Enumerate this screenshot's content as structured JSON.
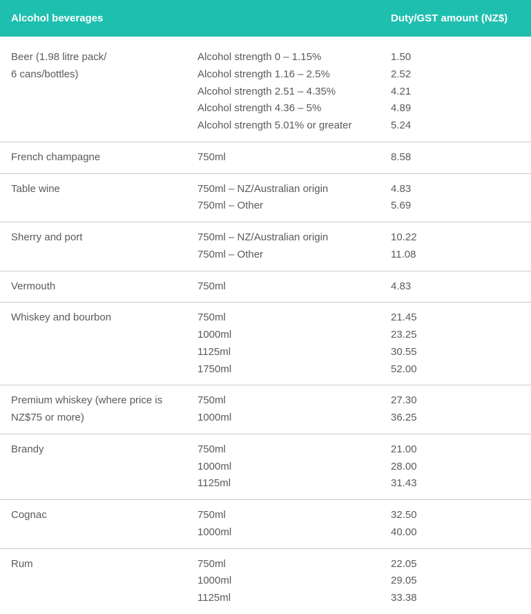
{
  "colors": {
    "header_bg": "#1fbfaf",
    "header_text": "#ffffff",
    "body_text": "#5a5a5a",
    "divider": "#c9c9c9"
  },
  "header": {
    "col1": "Alcohol beverages",
    "col2": "",
    "col3": "Duty/GST amount (NZ$)"
  },
  "rows": [
    {
      "product": [
        "Beer (1.98 litre pack/",
        "6 cans/bottles)"
      ],
      "detail": [
        "Alcohol strength 0 – 1.15%",
        "Alcohol strength 1.16 – 2.5%",
        "Alcohol strength 2.51 – 4.35%",
        "Alcohol strength 4.36 – 5%",
        "Alcohol strength 5.01% or greater"
      ],
      "amount": [
        "1.50",
        "2.52",
        "4.21",
        "4.89",
        "5.24"
      ]
    },
    {
      "product": [
        "French champagne"
      ],
      "detail": [
        "750ml"
      ],
      "amount": [
        "8.58"
      ]
    },
    {
      "product": [
        "Table wine"
      ],
      "detail": [
        "750ml – NZ/Australian origin",
        "750ml – Other"
      ],
      "amount": [
        "4.83",
        "5.69"
      ]
    },
    {
      "product": [
        "Sherry and port"
      ],
      "detail": [
        "750ml – NZ/Australian origin",
        "750ml – Other"
      ],
      "amount": [
        "10.22",
        "11.08"
      ]
    },
    {
      "product": [
        "Vermouth"
      ],
      "detail": [
        "750ml"
      ],
      "amount": [
        "4.83"
      ]
    },
    {
      "product": [
        "Whiskey and bourbon"
      ],
      "detail": [
        "750ml",
        "1000ml",
        "1125ml",
        "1750ml"
      ],
      "amount": [
        "21.45",
        "23.25",
        "30.55",
        "52.00"
      ]
    },
    {
      "product": [
        "Premium whiskey (where price is",
        "NZ$75 or more)"
      ],
      "detail": [
        "750ml",
        "1000ml"
      ],
      "amount": [
        "27.30",
        "36.25"
      ]
    },
    {
      "product": [
        "Brandy"
      ],
      "detail": [
        "750ml",
        "1000ml",
        "1125ml"
      ],
      "amount": [
        "21.00",
        "28.00",
        "31.43"
      ]
    },
    {
      "product": [
        "Cognac"
      ],
      "detail": [
        "750ml",
        "1000ml"
      ],
      "amount": [
        "32.50",
        "40.00"
      ]
    },
    {
      "product": [
        "Rum"
      ],
      "detail": [
        "750ml",
        "1000ml",
        "1125ml"
      ],
      "amount": [
        "22.05",
        "29.05",
        "33.38"
      ]
    }
  ]
}
